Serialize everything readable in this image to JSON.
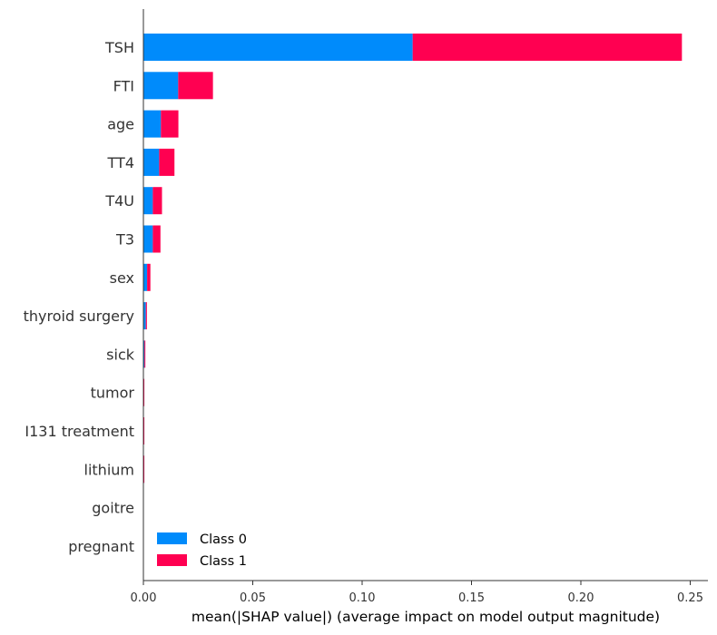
{
  "chart_data": {
    "type": "bar",
    "orientation": "horizontal",
    "stacked": true,
    "categories": [
      "TSH",
      "FTI",
      "age",
      "TT4",
      "T4U",
      "T3",
      "sex",
      "thyroid surgery",
      "sick",
      "tumor",
      "I131 treatment",
      "lithium",
      "goitre",
      "pregnant"
    ],
    "series": [
      {
        "name": "Class 0",
        "color": "#008bfb",
        "values": [
          0.1231,
          0.0159,
          0.008,
          0.0072,
          0.0043,
          0.0043,
          0.0017,
          0.0011,
          0.0005,
          0.0001,
          0.0001,
          0.0001,
          0.0,
          0.0
        ]
      },
      {
        "name": "Class 1",
        "color": "#ff0051",
        "values": [
          0.1231,
          0.0159,
          0.008,
          0.007,
          0.0042,
          0.0035,
          0.0015,
          0.0005,
          0.0004,
          0.0002,
          0.0001,
          0.0001,
          0.0,
          0.0
        ]
      }
    ],
    "xlabel": "mean(|SHAP value|) (average impact on model output magnitude)",
    "ylabel": "",
    "xlim": [
      0.0,
      0.25
    ],
    "xticks": [
      "0.00",
      "0.05",
      "0.10",
      "0.15",
      "0.20",
      "0.25"
    ],
    "xtick_values": [
      0.0,
      0.05,
      0.1,
      0.15,
      0.2,
      0.25
    ],
    "grid": false,
    "legend_position": "lower-left"
  }
}
